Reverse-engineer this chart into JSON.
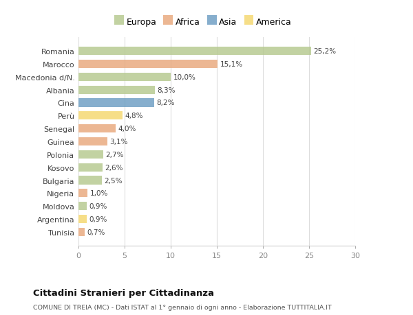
{
  "categories": [
    "Tunisia",
    "Argentina",
    "Moldova",
    "Nigeria",
    "Bulgaria",
    "Kosovo",
    "Polonia",
    "Guinea",
    "Senegal",
    "Perù",
    "Cina",
    "Albania",
    "Macedonia d/N.",
    "Marocco",
    "Romania"
  ],
  "values": [
    0.7,
    0.9,
    0.9,
    1.0,
    2.5,
    2.6,
    2.7,
    3.1,
    4.0,
    4.8,
    8.2,
    8.3,
    10.0,
    15.1,
    25.2
  ],
  "labels": [
    "0,7%",
    "0,9%",
    "0,9%",
    "1,0%",
    "2,5%",
    "2,6%",
    "2,7%",
    "3,1%",
    "4,0%",
    "4,8%",
    "8,2%",
    "8,3%",
    "10,0%",
    "15,1%",
    "25,2%"
  ],
  "colors": [
    "#e8a87c",
    "#f5d76e",
    "#b5c98e",
    "#e8a87c",
    "#b5c98e",
    "#b5c98e",
    "#b5c98e",
    "#e8a87c",
    "#e8a87c",
    "#f5d76e",
    "#6b9dc2",
    "#b5c98e",
    "#b5c98e",
    "#e8a87c",
    "#b5c98e"
  ],
  "legend_labels": [
    "Europa",
    "Africa",
    "Asia",
    "America"
  ],
  "legend_colors": [
    "#b5c98e",
    "#e8a87c",
    "#6b9dc2",
    "#f5d76e"
  ],
  "title": "Cittadini Stranieri per Cittadinanza",
  "subtitle": "COMUNE DI TREIA (MC) - Dati ISTAT al 1° gennaio di ogni anno - Elaborazione TUTTITALIA.IT",
  "xlim": [
    0,
    30
  ],
  "xticks": [
    0,
    5,
    10,
    15,
    20,
    25,
    30
  ],
  "background_color": "#ffffff",
  "grid_color": "#dddddd",
  "bar_alpha": 0.82
}
